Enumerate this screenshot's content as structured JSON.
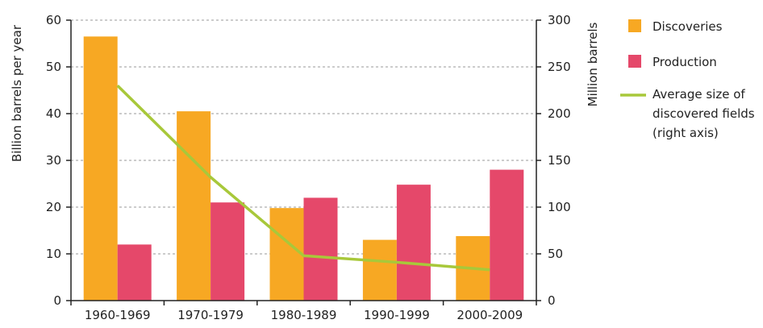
{
  "chart_data": {
    "type": "bar",
    "categories": [
      "1960-1969",
      "1970-1979",
      "1980-1989",
      "1990-1999",
      "2000-2009"
    ],
    "series": [
      {
        "name": "Discoveries",
        "type": "bar",
        "axis": "left",
        "color": "#F7A823",
        "values": [
          56.5,
          40.5,
          19.8,
          13.0,
          13.8
        ]
      },
      {
        "name": "Production",
        "type": "bar",
        "axis": "left",
        "color": "#E5486A",
        "values": [
          12,
          21,
          22,
          24.8,
          28
        ]
      }
    ],
    "line_series": [
      {
        "name_lines": [
          "Average size of",
          "discovered fields",
          "(right axis)"
        ],
        "type": "line",
        "axis": "right",
        "color": "#A8C83A",
        "values": [
          230,
          132,
          48,
          41,
          33
        ]
      }
    ],
    "ylabel": "Billion barrels per year",
    "y2label": "Million barrels",
    "ylim": [
      0,
      60
    ],
    "y2lim": [
      0,
      300
    ],
    "yticks": [
      0,
      10,
      20,
      30,
      40,
      50,
      60
    ],
    "y2ticks": [
      0,
      50,
      100,
      150,
      200,
      250,
      300
    ],
    "grid": true,
    "legend_position": "right"
  }
}
